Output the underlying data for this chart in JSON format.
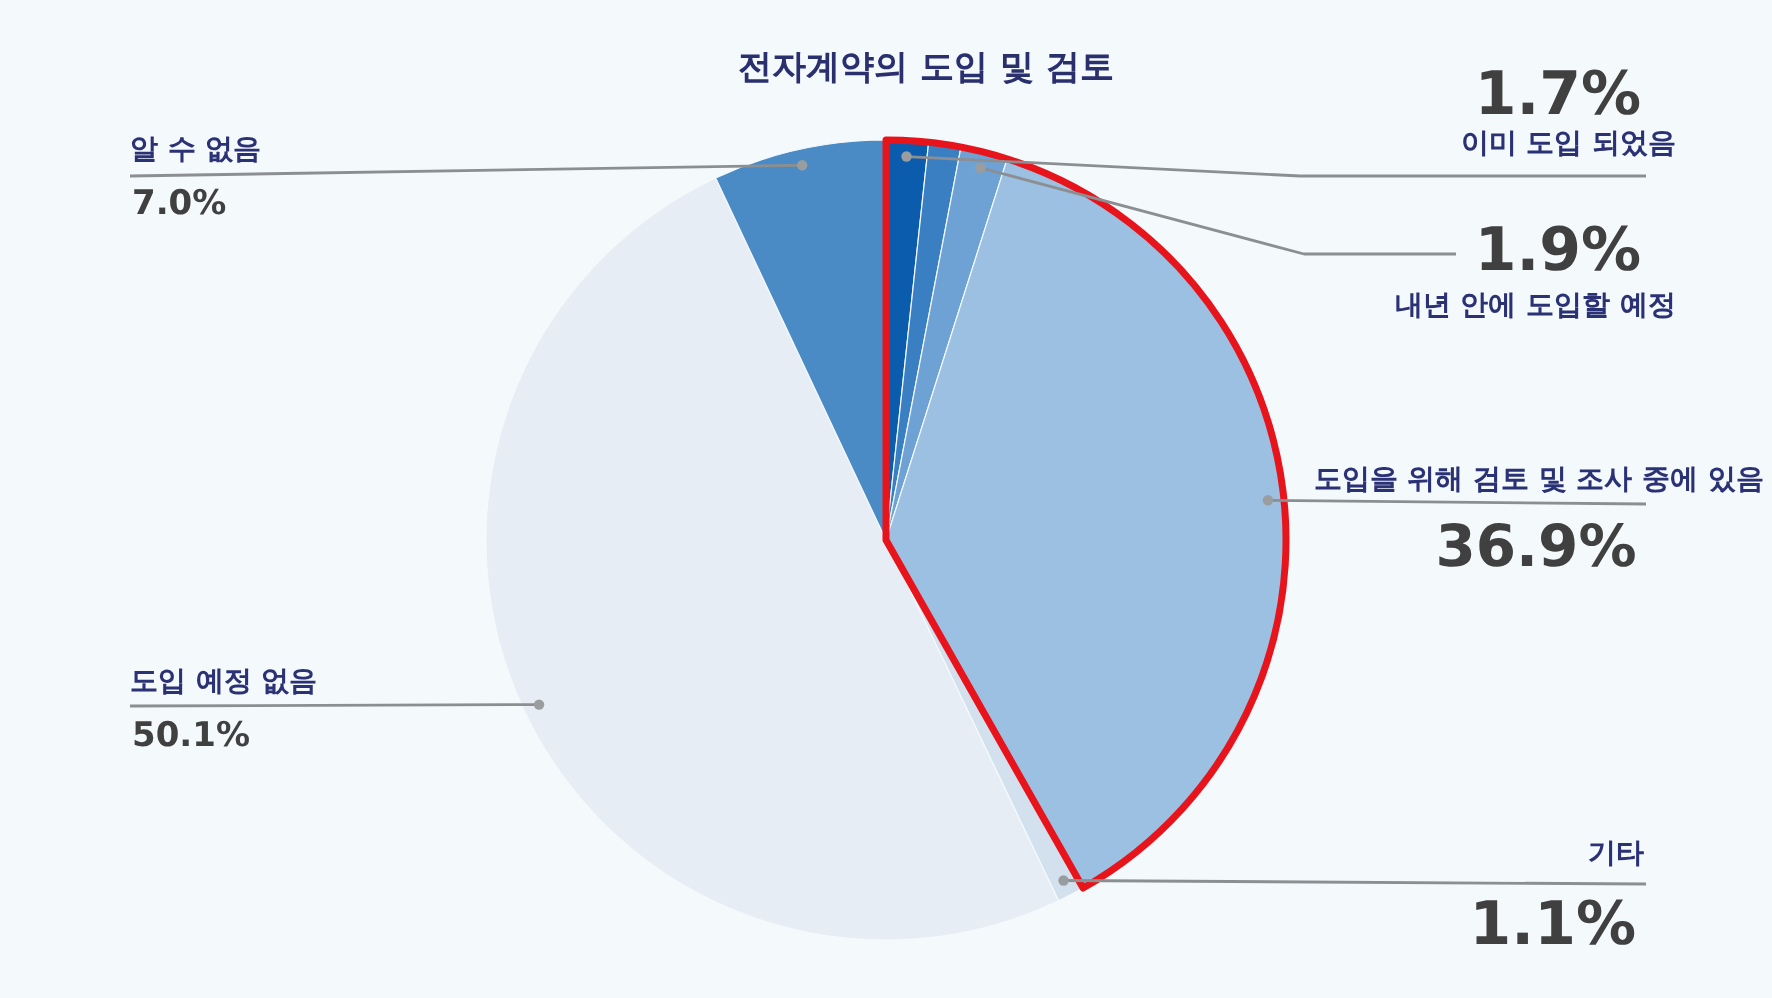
{
  "chart_data": {
    "type": "pie",
    "title": "전자계약의 도입 및 검토",
    "categories": [
      "이미 도입 되었음",
      null,
      "내년 안에 도입할 예정",
      "도입을 위해 검토 및 조사 중에 있음",
      "기타",
      "도입 예정 없음",
      "알 수 없음"
    ],
    "values": [
      1.7,
      1.3,
      1.9,
      36.9,
      1.1,
      50.1,
      7.0
    ],
    "value_labels": [
      "1.7%",
      null,
      "1.9%",
      "36.9%",
      "1.1%",
      "50.1%",
      "7.0%"
    ],
    "colors": [
      "#0b5cad",
      "#3a7fc2",
      "#6ea2d4",
      "#9cc0e2",
      "#d3e0ed",
      "#e6edf5",
      "#4a8bc6"
    ]
  }
}
